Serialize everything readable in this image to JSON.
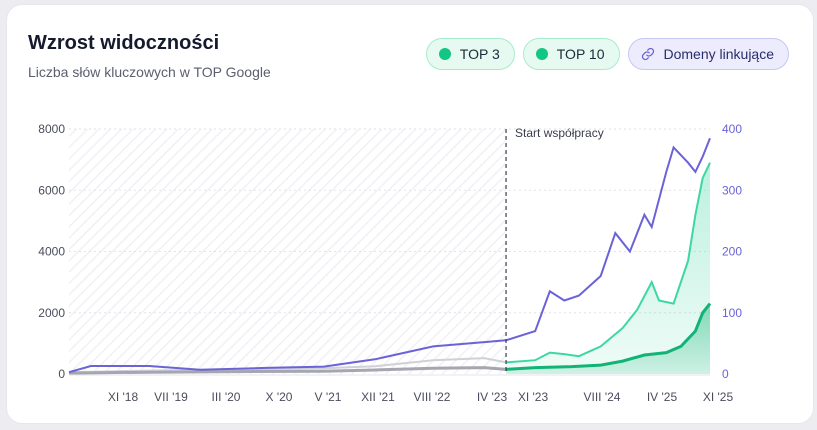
{
  "header": {
    "title": "Wzrost widoczności",
    "subtitle": "Liczba słów kluczowych w TOP Google"
  },
  "legend": [
    {
      "label": "TOP 3",
      "color": "#12c784"
    },
    {
      "label": "TOP 10",
      "color": "#12c784"
    },
    {
      "label": "Domeny linkujące",
      "icon": "link-icon"
    }
  ],
  "chart_data": {
    "type": "area",
    "title": "Wzrost widoczności",
    "subtitle": "Liczba słów kluczowych w TOP Google",
    "x_range": [
      "2018-07",
      "2025-11"
    ],
    "x_ticks": [
      "XI '18",
      "VII '19",
      "III '20",
      "X '20",
      "V '21",
      "XII '21",
      "VIII '22",
      "IV '23",
      "XI '23",
      "VIII '24",
      "IV '25",
      "XI '25"
    ],
    "y_left": {
      "range": [
        0,
        8000
      ],
      "ticks": [
        "0",
        "2000",
        "4000",
        "6000",
        "8000"
      ]
    },
    "y_right": {
      "range": [
        0,
        400
      ],
      "ticks": [
        "0",
        "100",
        "200",
        "300",
        "400"
      ],
      "color": "#6a63d8"
    },
    "annotation": {
      "label": "Start współpracy",
      "date": "2023-07"
    },
    "series": [
      {
        "name": "TOP 3",
        "axis": "left",
        "color": "#12b377",
        "points_before": [
          [
            "2018-07",
            30
          ],
          [
            "2019-06",
            60
          ],
          [
            "2020-06",
            80
          ],
          [
            "2021-06",
            90
          ],
          [
            "2022-01",
            130
          ],
          [
            "2022-09",
            190
          ],
          [
            "2023-04",
            210
          ],
          [
            "2023-07",
            150
          ]
        ],
        "points_after": [
          [
            "2023-07",
            150
          ],
          [
            "2023-11",
            210
          ],
          [
            "2024-04",
            240
          ],
          [
            "2024-08",
            290
          ],
          [
            "2024-11",
            420
          ],
          [
            "2025-02",
            620
          ],
          [
            "2025-05",
            700
          ],
          [
            "2025-07",
            900
          ],
          [
            "2025-09",
            1400
          ],
          [
            "2025-10",
            2000
          ],
          [
            "2025-11",
            2300
          ]
        ]
      },
      {
        "name": "TOP 10",
        "axis": "left",
        "color": "#3ed6a2",
        "points_before": [
          [
            "2018-07",
            60
          ],
          [
            "2019-06",
            110
          ],
          [
            "2020-06",
            150
          ],
          [
            "2021-06",
            190
          ],
          [
            "2022-01",
            250
          ],
          [
            "2022-09",
            450
          ],
          [
            "2023-04",
            520
          ],
          [
            "2023-07",
            380
          ]
        ],
        "points_after": [
          [
            "2023-07",
            380
          ],
          [
            "2023-11",
            450
          ],
          [
            "2024-01",
            700
          ],
          [
            "2024-03",
            650
          ],
          [
            "2024-05",
            580
          ],
          [
            "2024-08",
            900
          ],
          [
            "2024-11",
            1500
          ],
          [
            "2025-01",
            2100
          ],
          [
            "2025-03",
            3000
          ],
          [
            "2025-04",
            2400
          ],
          [
            "2025-06",
            2300
          ],
          [
            "2025-08",
            3700
          ],
          [
            "2025-09",
            5200
          ],
          [
            "2025-10",
            6400
          ],
          [
            "2025-11",
            6900
          ]
        ]
      },
      {
        "name": "Domeny linkujące",
        "axis": "right",
        "color": "#6a63d8",
        "points": [
          [
            "2018-07",
            3
          ],
          [
            "2018-10",
            13
          ],
          [
            "2019-06",
            13
          ],
          [
            "2020-01",
            7
          ],
          [
            "2020-10",
            10
          ],
          [
            "2021-06",
            12
          ],
          [
            "2022-01",
            24
          ],
          [
            "2022-09",
            45
          ],
          [
            "2023-04",
            52
          ],
          [
            "2023-07",
            55
          ],
          [
            "2023-11",
            70
          ],
          [
            "2024-01",
            135
          ],
          [
            "2024-03",
            120
          ],
          [
            "2024-05",
            128
          ],
          [
            "2024-08",
            160
          ],
          [
            "2024-10",
            230
          ],
          [
            "2024-12",
            200
          ],
          [
            "2025-02",
            260
          ],
          [
            "2025-03",
            240
          ],
          [
            "2025-05",
            330
          ],
          [
            "2025-06",
            370
          ],
          [
            "2025-08",
            345
          ],
          [
            "2025-09",
            330
          ],
          [
            "2025-10",
            355
          ],
          [
            "2025-11",
            385
          ]
        ]
      }
    ]
  }
}
